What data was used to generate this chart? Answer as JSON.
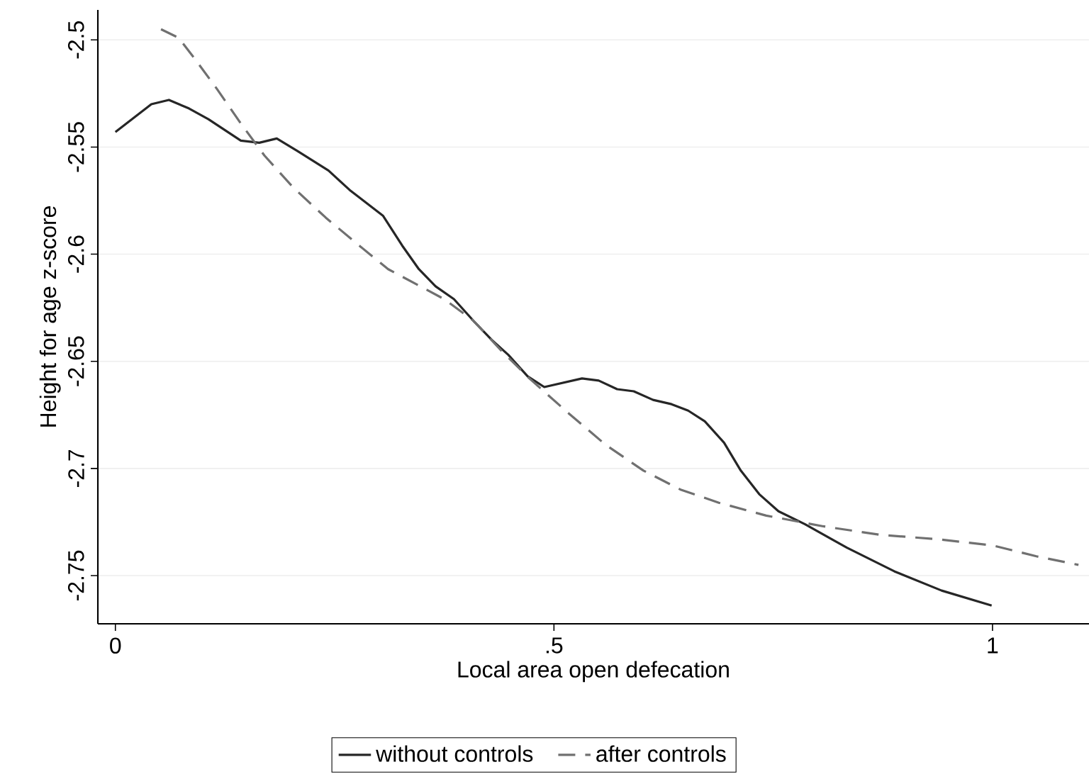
{
  "chart_data": {
    "type": "line",
    "xlabel": "Local area open defecation",
    "ylabel": "Height for age z-score",
    "xlim": [
      -0.02,
      1.11
    ],
    "ylim": [
      -2.7725,
      -2.486
    ],
    "xticks": [
      0,
      {
        "value": 0.5,
        "label": ".5"
      },
      1
    ],
    "yticks": [
      -2.5,
      -2.55,
      -2.6,
      -2.65,
      -2.7,
      -2.75
    ],
    "grid": "y",
    "legend": "bottom",
    "marker": "none",
    "series": [
      {
        "name": "without controls",
        "color": "#262626",
        "line_style": "solid",
        "x": [
          0.0,
          0.041,
          0.061,
          0.084,
          0.106,
          0.143,
          0.164,
          0.184,
          0.208,
          0.243,
          0.267,
          0.305,
          0.327,
          0.346,
          0.365,
          0.386,
          0.408,
          0.429,
          0.448,
          0.47,
          0.489,
          0.532,
          0.551,
          0.572,
          0.591,
          0.613,
          0.634,
          0.653,
          0.672,
          0.694,
          0.713,
          0.734,
          0.756,
          0.786,
          0.834,
          0.888,
          0.942,
          0.999
        ],
        "values": [
          -2.543,
          -2.53,
          -2.528,
          -2.532,
          -2.537,
          -2.547,
          -2.548,
          -2.546,
          -2.552,
          -2.561,
          -2.57,
          -2.582,
          -2.596,
          -2.607,
          -2.615,
          -2.621,
          -2.631,
          -2.64,
          -2.647,
          -2.657,
          -2.662,
          -2.658,
          -2.659,
          -2.663,
          -2.664,
          -2.668,
          -2.67,
          -2.673,
          -2.678,
          -2.688,
          -2.701,
          -2.712,
          -2.72,
          -2.726,
          -2.737,
          -2.748,
          -2.757,
          -2.764
        ]
      },
      {
        "name": "after controls",
        "color": "#707070",
        "line_style": "dashed",
        "x": [
          0.052,
          0.072,
          0.089,
          0.116,
          0.143,
          0.17,
          0.203,
          0.24,
          0.278,
          0.311,
          0.343,
          0.375,
          0.408,
          0.44,
          0.472,
          0.516,
          0.559,
          0.602,
          0.645,
          0.688,
          0.742,
          0.807,
          0.872,
          0.937,
          1.001,
          1.05,
          1.098
        ],
        "values": [
          -2.495,
          -2.499,
          -2.508,
          -2.523,
          -2.539,
          -2.554,
          -2.569,
          -2.583,
          -2.596,
          -2.607,
          -2.614,
          -2.621,
          -2.631,
          -2.645,
          -2.658,
          -2.674,
          -2.689,
          -2.701,
          -2.71,
          -2.716,
          -2.722,
          -2.727,
          -2.731,
          -2.733,
          -2.736,
          -2.741,
          -2.745
        ]
      }
    ]
  }
}
